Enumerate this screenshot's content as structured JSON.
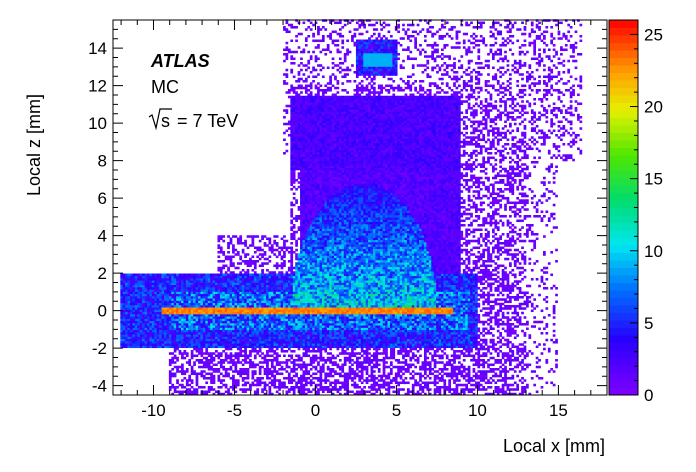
{
  "chart_data": {
    "type": "heatmap",
    "title": "",
    "xlabel": "Local x [mm]",
    "ylabel": "Local z [mm]",
    "xlim": [
      -12.5,
      18
    ],
    "ylim": [
      -4.5,
      15.5
    ],
    "x_ticks": [
      -10,
      -5,
      0,
      5,
      10,
      15
    ],
    "x_tick_labels": [
      "-10",
      "-5",
      "0",
      "5",
      "10",
      "15"
    ],
    "y_ticks": [
      -4,
      -2,
      0,
      2,
      4,
      6,
      8,
      10,
      12,
      14
    ],
    "y_tick_labels": [
      "-4",
      "-2",
      "0",
      "2",
      "4",
      "6",
      "8",
      "10",
      "12",
      "14"
    ],
    "colorbar": {
      "zlim": [
        0,
        26
      ],
      "ticks": [
        0,
        5,
        10,
        15,
        20,
        25
      ],
      "tick_labels": [
        "0",
        "5",
        "10",
        "15",
        "20",
        "25"
      ]
    },
    "annotations": {
      "experiment": "ATLAS",
      "sample": "MC",
      "energy_sqrt": "s",
      "energy_rest": " = 7 TeV"
    },
    "regions": [
      {
        "name": "central strip",
        "x": [
          -9.5,
          8.5
        ],
        "z": [
          -0.2,
          0.2
        ],
        "level": 24
      },
      {
        "name": "lower block",
        "x": [
          -12,
          10
        ],
        "z": [
          -2,
          2
        ],
        "level": 6
      },
      {
        "name": "dome",
        "x": [
          -2,
          8
        ],
        "z": [
          0,
          7
        ],
        "level": 11
      },
      {
        "name": "upper block",
        "x": [
          -1.5,
          9
        ],
        "z": [
          7.5,
          11.5
        ],
        "level": 3
      },
      {
        "name": "top spot",
        "x": [
          2.5,
          5
        ],
        "z": [
          12.5,
          14.5
        ],
        "level": 6
      },
      {
        "name": "halo",
        "x": [
          -9,
          16.5
        ],
        "z": [
          -4.5,
          15.5
        ],
        "level": 1
      }
    ]
  }
}
